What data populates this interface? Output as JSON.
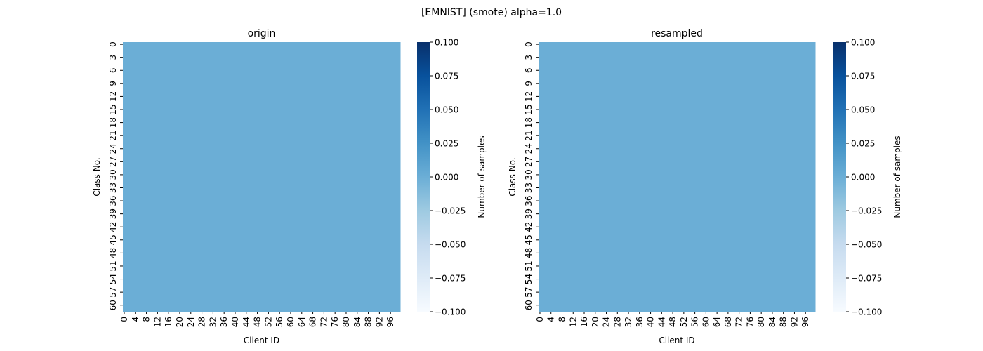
{
  "figure": {
    "title": "[EMNIST] (smote) alpha=1.0"
  },
  "colors": {
    "cell_fill": "#6baed6",
    "cmap_low": "#f7fbff",
    "cmap_high": "#08306b",
    "axis": "#000000"
  },
  "chart_data": [
    {
      "type": "heatmap",
      "title": "origin",
      "xlabel": "Client ID",
      "ylabel": "Class No.",
      "colorbar_label": "Number of samples",
      "n_clients": 100,
      "n_classes": 62,
      "uniform_value": 0.0,
      "x_tick_labels": [
        "0",
        "4",
        "8",
        "12",
        "16",
        "20",
        "24",
        "28",
        "32",
        "36",
        "40",
        "44",
        "48",
        "52",
        "56",
        "60",
        "64",
        "68",
        "72",
        "76",
        "80",
        "84",
        "88",
        "92",
        "96"
      ],
      "y_tick_labels": [
        "0",
        "3",
        "6",
        "9",
        "12",
        "15",
        "18",
        "21",
        "24",
        "27",
        "30",
        "33",
        "36",
        "39",
        "42",
        "45",
        "48",
        "51",
        "54",
        "57",
        "60"
      ],
      "colorbar_range": [
        -0.1,
        0.1
      ],
      "colorbar_ticks": [
        "0.100",
        "0.075",
        "0.050",
        "0.025",
        "0.000",
        "−0.025",
        "−0.050",
        "−0.075",
        "−0.100"
      ]
    },
    {
      "type": "heatmap",
      "title": "resampled",
      "xlabel": "Client ID",
      "ylabel": "Class No.",
      "colorbar_label": "Number of samples",
      "n_clients": 100,
      "n_classes": 62,
      "uniform_value": 0.0,
      "x_tick_labels": [
        "0",
        "4",
        "8",
        "12",
        "16",
        "20",
        "24",
        "28",
        "32",
        "36",
        "40",
        "44",
        "48",
        "52",
        "56",
        "60",
        "64",
        "68",
        "72",
        "76",
        "80",
        "84",
        "88",
        "92",
        "96"
      ],
      "y_tick_labels": [
        "0",
        "3",
        "6",
        "9",
        "12",
        "15",
        "18",
        "21",
        "24",
        "27",
        "30",
        "33",
        "36",
        "39",
        "42",
        "45",
        "48",
        "51",
        "54",
        "57",
        "60"
      ],
      "colorbar_range": [
        -0.1,
        0.1
      ],
      "colorbar_ticks": [
        "0.100",
        "0.075",
        "0.050",
        "0.025",
        "0.000",
        "−0.025",
        "−0.050",
        "−0.075",
        "−0.100"
      ]
    }
  ]
}
